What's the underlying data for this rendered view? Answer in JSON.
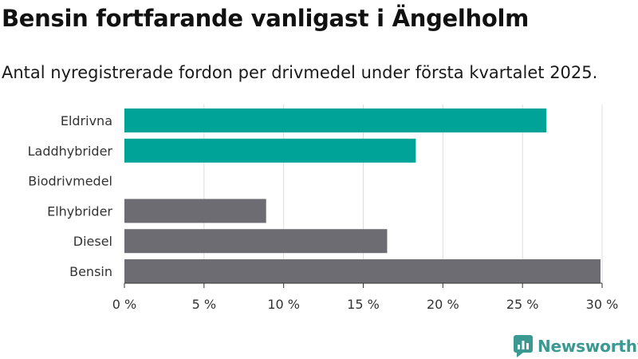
{
  "title": "Bensin fortfarande vanligast i Ängelholm",
  "subtitle": "Antal nyregistrerade fordon per drivmedel under första kvartalet 2025.",
  "logo": {
    "text": "Newsworthy",
    "icon": "newsworthy-logo-icon"
  },
  "colors": {
    "highlight": "#00a398",
    "default": "#6d6c72",
    "grid": "#dddddd",
    "axis": "#333333"
  },
  "chart_data": {
    "type": "bar",
    "orientation": "horizontal",
    "categories": [
      "Eldrivna",
      "Laddhybrider",
      "Biodrivmedel",
      "Elhybrider",
      "Diesel",
      "Bensin"
    ],
    "values": [
      26.5,
      18.3,
      0,
      8.9,
      16.5,
      29.9
    ],
    "highlight": [
      true,
      true,
      true,
      false,
      false,
      false
    ],
    "xlim": [
      0,
      30
    ],
    "xticks": [
      0,
      5,
      10,
      15,
      20,
      25,
      30
    ],
    "xtick_labels": [
      "0 %",
      "5 %",
      "10 %",
      "15 %",
      "20 %",
      "25 %",
      "30 %"
    ],
    "grid": true
  }
}
